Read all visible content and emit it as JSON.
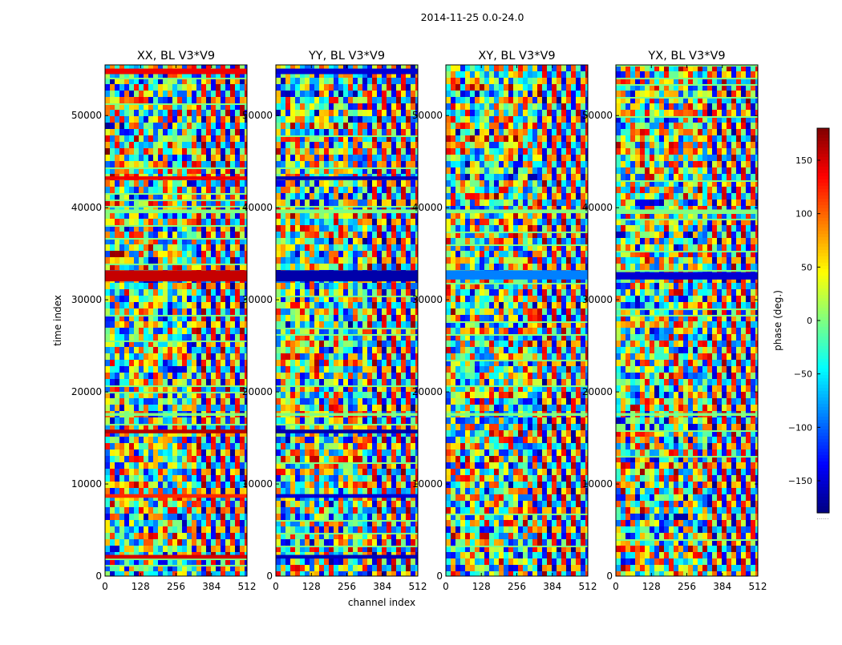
{
  "figure": {
    "title": "2014-11-25 0.0-24.0",
    "xlabel": "channel index",
    "ylabel": "time index",
    "colorbar_label": "phase (deg.)",
    "colorbar_footer": "......"
  },
  "chart_data": [
    {
      "type": "heatmap",
      "title": "XX, BL V3*V9",
      "polarization": "XX",
      "baseline": "V3*V9",
      "xlabel": "channel index",
      "ylabel": "time index",
      "xlim": [
        0,
        512
      ],
      "ylim": [
        0,
        55500
      ],
      "xticks": [
        0,
        128,
        256,
        384,
        512
      ],
      "yticks": [
        0,
        10000,
        20000,
        30000,
        40000,
        50000
      ],
      "color_scale": "jet",
      "value_range": [
        -180,
        180
      ],
      "channel_split": 320,
      "flagged_bands": [
        {
          "t0": 1900,
          "t1": 2300,
          "phase": 150
        },
        {
          "t0": 8500,
          "t1": 8900,
          "phase": 120
        },
        {
          "t0": 15500,
          "t1": 15900,
          "phase": 160
        },
        {
          "t0": 17400,
          "t1": 17700,
          "phase": 0
        },
        {
          "t0": 32000,
          "t1": 33200,
          "phase": 155
        },
        {
          "t0": 39400,
          "t1": 39800,
          "phase": 0
        },
        {
          "t0": 43000,
          "t1": 43400,
          "phase": 140
        },
        {
          "t0": 54500,
          "t1": 55100,
          "phase": 140
        }
      ]
    },
    {
      "type": "heatmap",
      "title": "YY, BL V3*V9",
      "polarization": "YY",
      "baseline": "V3*V9",
      "xlabel": "channel index",
      "ylabel": "time index",
      "xlim": [
        0,
        512
      ],
      "ylim": [
        0,
        55500
      ],
      "xticks": [
        0,
        128,
        256,
        384,
        512
      ],
      "yticks": [
        0,
        10000,
        20000,
        30000,
        40000,
        50000
      ],
      "color_scale": "jet",
      "value_range": [
        -180,
        180
      ],
      "channel_split": 320,
      "flagged_bands": [
        {
          "t0": 1900,
          "t1": 2300,
          "phase": -160
        },
        {
          "t0": 8500,
          "t1": 8900,
          "phase": -150
        },
        {
          "t0": 15500,
          "t1": 15900,
          "phase": -165
        },
        {
          "t0": 17400,
          "t1": 17700,
          "phase": 0
        },
        {
          "t0": 32000,
          "t1": 33200,
          "phase": -165
        },
        {
          "t0": 39400,
          "t1": 39800,
          "phase": 0
        },
        {
          "t0": 43000,
          "t1": 43400,
          "phase": -160
        },
        {
          "t0": 54500,
          "t1": 55100,
          "phase": -150
        }
      ]
    },
    {
      "type": "heatmap",
      "title": "XY, BL V3*V9",
      "polarization": "XY",
      "baseline": "V3*V9",
      "xlabel": "channel index",
      "ylabel": "time index",
      "xlim": [
        0,
        512
      ],
      "ylim": [
        0,
        55500
      ],
      "xticks": [
        0,
        128,
        256,
        384,
        512
      ],
      "yticks": [
        0,
        10000,
        20000,
        30000,
        40000,
        50000
      ],
      "color_scale": "jet",
      "value_range": [
        -180,
        180
      ],
      "channel_split": 320,
      "flagged_bands": [
        {
          "t0": 17400,
          "t1": 17700,
          "phase": 0
        },
        {
          "t0": 32200,
          "t1": 33200,
          "phase": -90
        },
        {
          "t0": 39400,
          "t1": 39800,
          "phase": 0
        }
      ]
    },
    {
      "type": "heatmap",
      "title": "YX, BL V3*V9",
      "polarization": "YX",
      "baseline": "V3*V9",
      "xlabel": "channel index",
      "ylabel": "time index",
      "xlim": [
        0,
        512
      ],
      "ylim": [
        0,
        55500
      ],
      "xticks": [
        0,
        128,
        256,
        384,
        512
      ],
      "yticks": [
        0,
        10000,
        20000,
        30000,
        40000,
        50000
      ],
      "color_scale": "jet",
      "value_range": [
        -180,
        180
      ],
      "channel_split": 320,
      "flagged_bands": [
        {
          "t0": 17400,
          "t1": 17700,
          "phase": 0
        },
        {
          "t0": 32200,
          "t1": 33000,
          "phase": -150
        },
        {
          "t0": 39400,
          "t1": 39800,
          "phase": 0
        }
      ]
    }
  ],
  "colorbar": {
    "min": -180,
    "max": 180,
    "ticks": [
      150,
      100,
      50,
      0,
      -50,
      -100,
      -150
    ],
    "tick_labels": [
      "150",
      "100",
      "50",
      "0",
      "−50",
      "−100",
      "−150"
    ]
  }
}
